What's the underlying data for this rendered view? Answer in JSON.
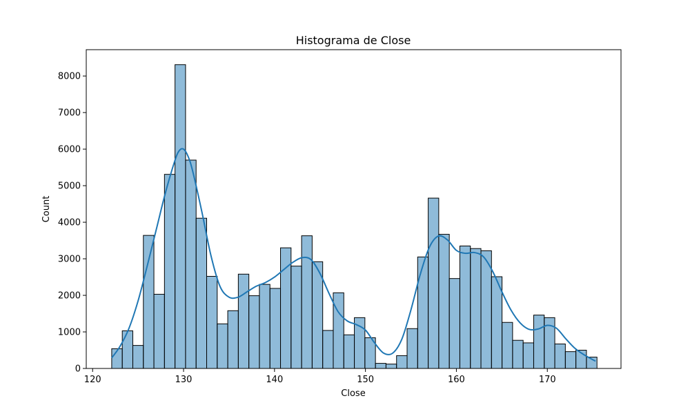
{
  "chart_data": {
    "type": "bar",
    "title": "Histograma de Close",
    "xlabel": "Close",
    "ylabel": "Count",
    "xlim": [
      119.3,
      178.1
    ],
    "ylim": [
      0,
      8720
    ],
    "xticks": [
      120,
      130,
      140,
      150,
      160,
      170
    ],
    "yticks": [
      0,
      1000,
      2000,
      3000,
      4000,
      5000,
      6000,
      7000,
      8000
    ],
    "grid": false,
    "colors": {
      "bar_fill": "#1f77b4",
      "bar_fill_opacity": 0.5,
      "bar_edge": "#000000",
      "kde_line": "#1f77b4"
    },
    "bins": {
      "start": 122.1,
      "width": 1.16,
      "counts": [
        540,
        1030,
        630,
        3640,
        2030,
        5310,
        8310,
        5700,
        4110,
        2520,
        1220,
        1580,
        2580,
        1990,
        2300,
        2190,
        3300,
        2800,
        3630,
        2920,
        1040,
        2070,
        920,
        1390,
        840,
        140,
        120,
        350,
        1090,
        3050,
        4660,
        3670,
        2460,
        3350,
        3280,
        3220,
        2510,
        1260,
        770,
        700,
        1460,
        1390,
        670,
        460,
        500,
        310
      ]
    },
    "kde": {
      "x": [
        122.1,
        123,
        124,
        125,
        126,
        127,
        128,
        129,
        129.5,
        130,
        130.5,
        131,
        132,
        133,
        134,
        135,
        136,
        137,
        138,
        139,
        140,
        141,
        142,
        143,
        144,
        145,
        146,
        147,
        148,
        149,
        150,
        151,
        152,
        153,
        154,
        155,
        156,
        157,
        158,
        159,
        160,
        161,
        162,
        163,
        164,
        165,
        166,
        167,
        168,
        169,
        170,
        171,
        172,
        173,
        174,
        175.3
      ],
      "y": [
        290,
        600,
        1100,
        1850,
        2800,
        3800,
        4800,
        5650,
        5950,
        6000,
        5800,
        5400,
        4300,
        3100,
        2250,
        1950,
        1950,
        2100,
        2250,
        2350,
        2500,
        2700,
        2900,
        3030,
        2980,
        2600,
        2050,
        1550,
        1300,
        1200,
        1050,
        700,
        420,
        420,
        800,
        1600,
        2550,
        3300,
        3620,
        3520,
        3230,
        3150,
        3170,
        3050,
        2650,
        2100,
        1600,
        1250,
        1070,
        1080,
        1180,
        1100,
        820,
        560,
        380,
        200
      ]
    }
  }
}
